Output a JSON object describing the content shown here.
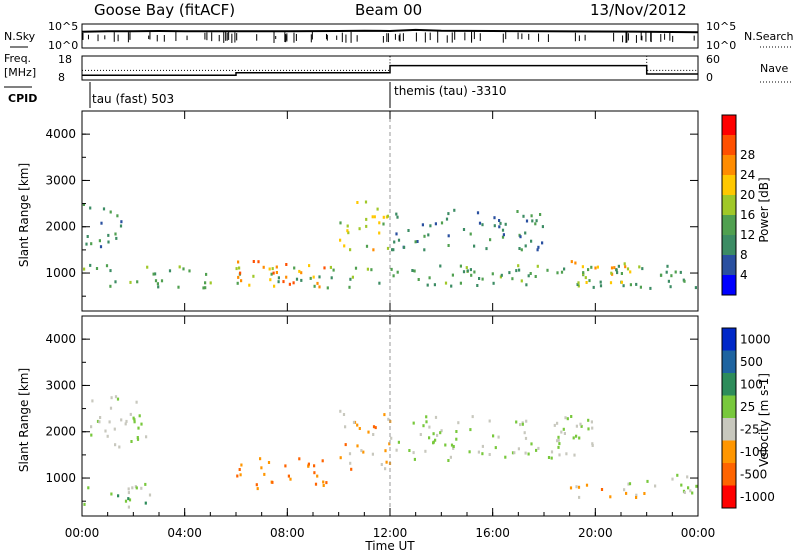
{
  "header": {
    "station": "Goose Bay (fitACF)",
    "beam": "Beam 00",
    "date": "13/Nov/2012"
  },
  "noise_panel": {
    "left_label": "N.Sky",
    "right_label": "N.Search",
    "left_ticks": [
      "10^5",
      "10^0"
    ],
    "right_ticks": [
      "10^5",
      "10^0"
    ]
  },
  "freq_panel": {
    "label_line1": "Freq.",
    "label_line2": "[MHz]",
    "left_ticks": [
      "18",
      "8"
    ],
    "right_ticks": [
      "60",
      "0"
    ],
    "right_label": "Nave"
  },
  "cpid": {
    "label": "CPID",
    "segments": [
      {
        "text": "tau (fast) 503",
        "start_hour": 0
      },
      {
        "text": "themis (tau) -3310",
        "start_hour": 12
      }
    ]
  },
  "x_axis": {
    "title": "Time UT",
    "ticks": [
      "00:00",
      "04:00",
      "08:00",
      "12:00",
      "16:00",
      "20:00",
      "00:00"
    ]
  },
  "power_panel": {
    "ylabel": "Slant Range [km]",
    "yticks": [
      "1000",
      "2000",
      "3000",
      "4000"
    ],
    "colorbar_label": "Power [dB]",
    "colorbar_ticks": [
      "4",
      "8",
      "12",
      "16",
      "20",
      "24",
      "28"
    ]
  },
  "velocity_panel": {
    "ylabel": "Slant Range [km]",
    "yticks": [
      "1000",
      "2000",
      "3000",
      "4000"
    ],
    "colorbar_label": "Velocity [m s-1]",
    "colorbar_ticks": [
      "1000",
      "500",
      "100",
      "25",
      "-25",
      "-100",
      "-500",
      "-1000"
    ]
  },
  "colors": {
    "power_scale": [
      "#0000ff",
      "#2a50a0",
      "#3c8c64",
      "#50a050",
      "#a0c828",
      "#ffc800",
      "#ff8c00",
      "#ff5000",
      "#ff0000"
    ],
    "velocity_scale": [
      "#0028c8",
      "#1e64a0",
      "#2d8c5a",
      "#78c83c",
      "#c8c8be",
      "#ff9600",
      "#ff6400",
      "#ff0000"
    ]
  },
  "chart_data": [
    {
      "type": "line",
      "title": "Goose Bay (fitACF) Beam 00 13/Nov/2012",
      "xlabel": "Time UT",
      "ylabel": "N.Sky",
      "xlim": [
        0,
        24
      ],
      "series": [
        {
          "name": "N.Sky",
          "x": [
            0,
            1,
            2,
            3,
            4,
            6,
            8,
            10,
            11,
            12,
            13,
            14,
            16,
            18,
            20,
            22,
            23,
            24
          ],
          "y": [
            2500,
            3000,
            3200,
            3500,
            3000,
            3000,
            3000,
            3500,
            4000,
            3500,
            6000,
            4000,
            3500,
            3000,
            2800,
            2500,
            2200,
            2000
          ]
        }
      ]
    },
    {
      "type": "line",
      "xlabel": "Time UT",
      "ylabel": "Freq. [MHz]",
      "xlim": [
        0,
        24
      ],
      "ylim": [
        8,
        18
      ],
      "series": [
        {
          "name": "Freq.",
          "x": [
            0,
            6,
            6,
            12,
            12,
            22,
            22,
            24
          ],
          "y": [
            10,
            10,
            11,
            11,
            14,
            14,
            10.5,
            10.5
          ]
        },
        {
          "name": "Nave",
          "x": [
            0,
            12,
            12,
            22,
            22,
            24
          ],
          "y": [
            12,
            12,
            18,
            18,
            12,
            12
          ]
        }
      ]
    },
    {
      "type": "heatmap",
      "ylabel": "Slant Range [km]",
      "xlabel": "Time UT",
      "colorbar": "Power [dB]",
      "xlim": [
        0,
        24
      ],
      "ylim": [
        180,
        4500
      ],
      "bands": [
        {
          "t0": 0,
          "t1": 24,
          "r0": 700,
          "r1": 1200,
          "value": 12
        },
        {
          "t0": 0,
          "t1": 1.5,
          "r0": 1600,
          "r1": 2600,
          "value": 10
        },
        {
          "t0": 6,
          "t1": 9.5,
          "r0": 700,
          "r1": 1300,
          "value": 22
        },
        {
          "t0": 7.5,
          "t1": 8.5,
          "r0": 750,
          "r1": 1000,
          "value": 28
        },
        {
          "t0": 10,
          "t1": 12,
          "r0": 1500,
          "r1": 2600,
          "value": 18
        },
        {
          "t0": 12,
          "t1": 18,
          "r0": 1500,
          "r1": 2400,
          "value": 9
        },
        {
          "t0": 19,
          "t1": 22,
          "r0": 800,
          "r1": 1300,
          "value": 20
        }
      ]
    },
    {
      "type": "heatmap",
      "ylabel": "Slant Range [km]",
      "xlabel": "Time UT",
      "colorbar": "Velocity [m s-1]",
      "xlim": [
        0,
        24
      ],
      "ylim": [
        180,
        4500
      ],
      "bands": [
        {
          "t0": 0,
          "t1": 2.5,
          "r0": 1700,
          "r1": 2800,
          "value": 0
        },
        {
          "t0": 0,
          "t1": 3,
          "r0": 400,
          "r1": 900,
          "value": 60
        },
        {
          "t0": 6,
          "t1": 9.5,
          "r0": 800,
          "r1": 1500,
          "value": -300
        },
        {
          "t0": 10,
          "t1": 12,
          "r0": 1200,
          "r1": 2500,
          "value": -200
        },
        {
          "t0": 12,
          "t1": 20,
          "r0": 1400,
          "r1": 2400,
          "value": 0
        },
        {
          "t0": 19,
          "t1": 22,
          "r0": 600,
          "r1": 1000,
          "value": -200
        },
        {
          "t0": 21,
          "t1": 24,
          "r0": 700,
          "r1": 1100,
          "value": 0
        }
      ]
    }
  ]
}
